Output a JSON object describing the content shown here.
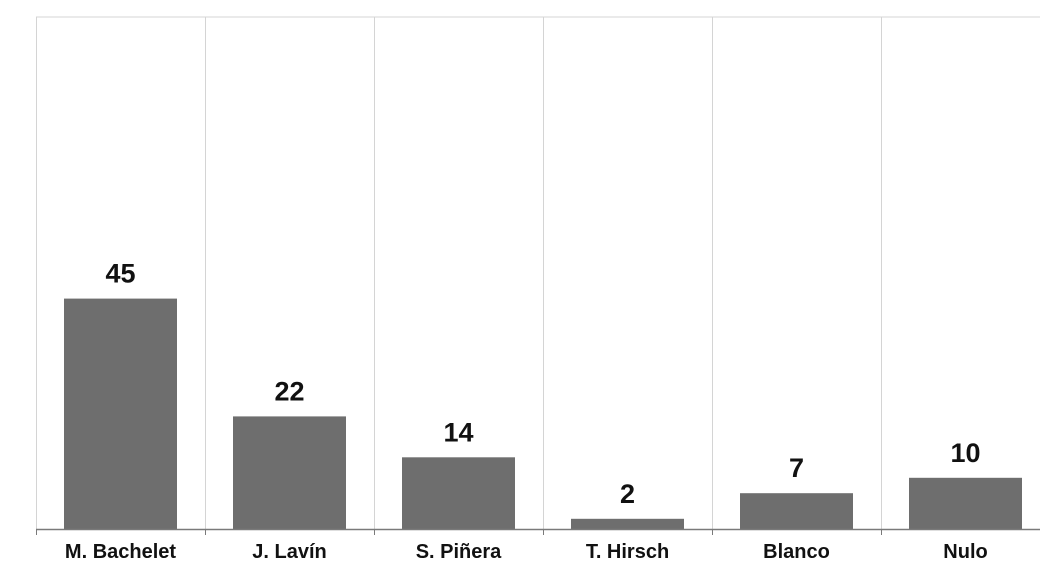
{
  "chart_data": {
    "type": "bar",
    "categories": [
      "M. Bachelet",
      "J. Lavín",
      "S. Piñera",
      "T. Hirsch",
      "Blanco",
      "Nulo"
    ],
    "values": [
      45,
      22,
      14,
      2,
      7,
      10
    ],
    "data_labels": [
      "45",
      "22",
      "14",
      "2",
      "7",
      "10"
    ],
    "title": "",
    "xlabel": "",
    "ylabel": "",
    "ylim": [
      0,
      100
    ],
    "grid": "vertical separators between categories",
    "legend": "none",
    "colors": {
      "bar": "#6e6e6e",
      "grid": "#d4d4d4",
      "axis": "#7a7a7a",
      "label": "#111111"
    }
  }
}
